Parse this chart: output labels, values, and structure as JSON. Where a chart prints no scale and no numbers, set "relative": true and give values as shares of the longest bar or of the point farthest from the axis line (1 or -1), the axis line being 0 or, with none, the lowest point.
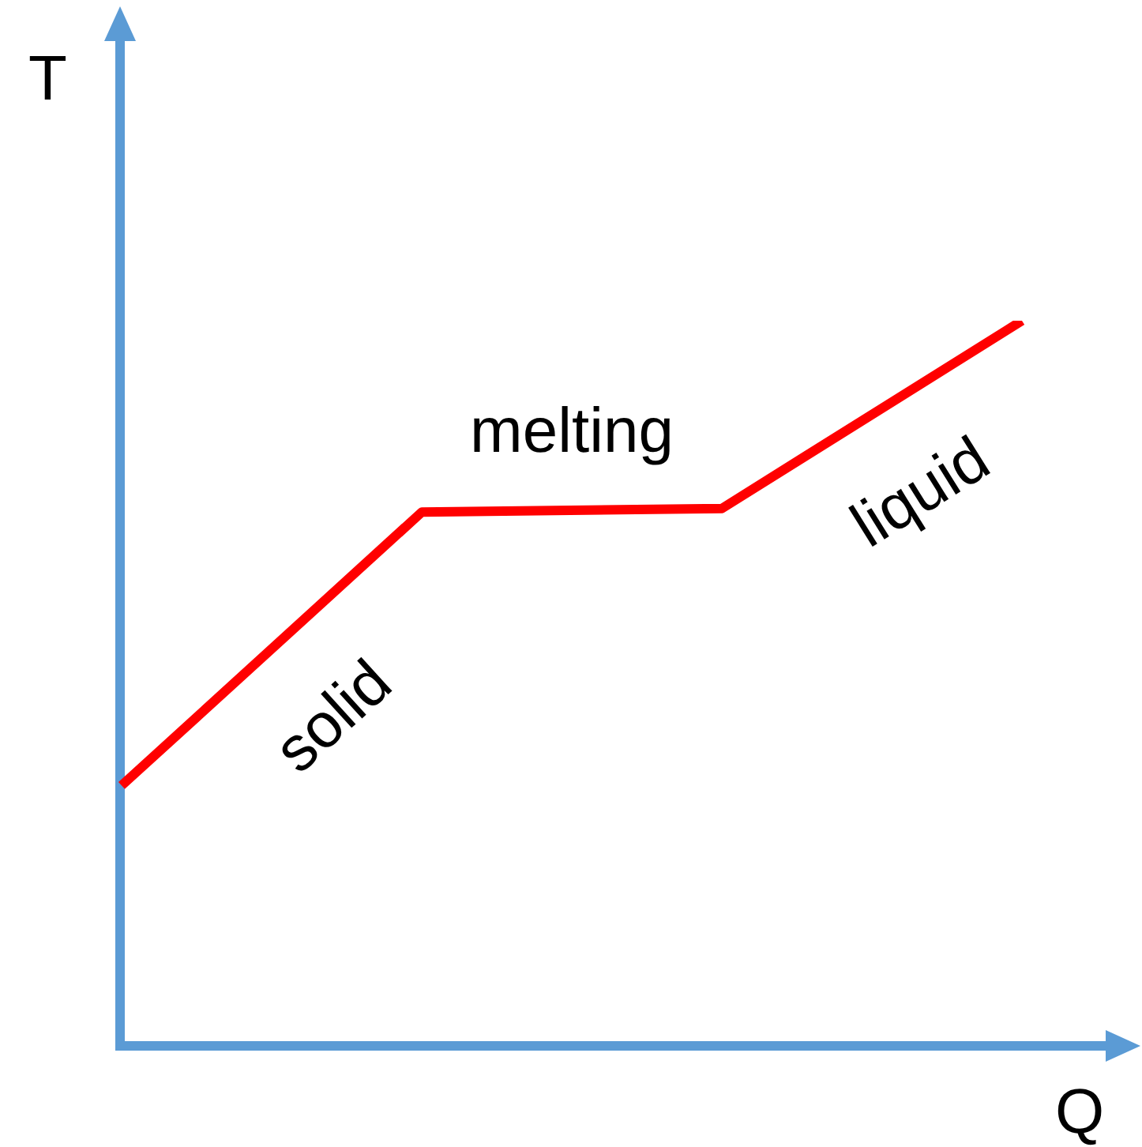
{
  "chart_data": {
    "type": "line",
    "relative": true,
    "xlabel": "Q",
    "ylabel": "T",
    "categories": [
      null,
      null,
      null,
      null
    ],
    "series": [
      {
        "color": "#ff0000",
        "values": [
          0.359,
          0.736,
          0.741,
          1
        ]
      }
    ],
    "annotations": [
      "solid",
      "melting",
      "liquid"
    ],
    "marker": "none",
    "grid": false,
    "legend": false,
    "tick_labels": false
  }
}
